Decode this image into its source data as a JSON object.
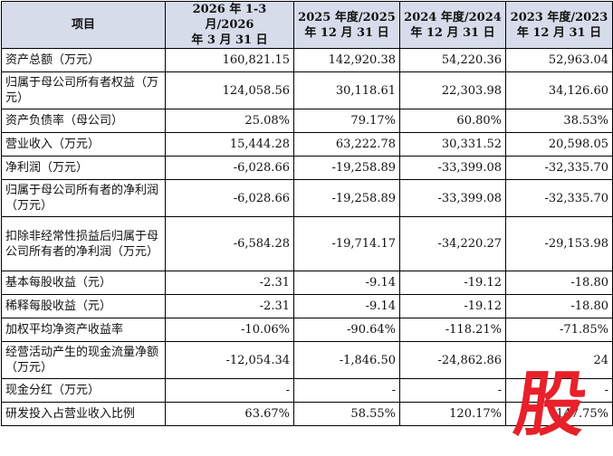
{
  "table": {
    "headers": [
      [
        "项目"
      ],
      [
        "2026 年 1-3 月/2026",
        "年 3 月 31 日"
      ],
      [
        "2025 年度/2025",
        "年 12 月 31 日"
      ],
      [
        "2024 年度/2024",
        "年 12 月 31 日"
      ],
      [
        "2023 年度/2023",
        "年 12 月 31 日"
      ]
    ],
    "rows": [
      {
        "label": "资产总额（万元）",
        "values": [
          "160,821.15",
          "142,920.38",
          "54,220.36",
          "52,963.04"
        ]
      },
      {
        "label": "归属于母公司所有者权益（万元）",
        "values": [
          "124,058.56",
          "30,118.61",
          "22,303.98",
          "34,126.60"
        ]
      },
      {
        "label": "资产负债率（母公司）",
        "values": [
          "25.08%",
          "79.17%",
          "60.80%",
          "38.53%"
        ]
      },
      {
        "label": "营业收入（万元）",
        "values": [
          "15,444.28",
          "63,222.78",
          "30,331.52",
          "20,598.05"
        ]
      },
      {
        "label": "净利润（万元）",
        "values": [
          "-6,028.66",
          "-19,258.89",
          "-33,399.08",
          "-32,335.70"
        ]
      },
      {
        "label": "归属于母公司所有者的净利润（万元）",
        "values": [
          "-6,028.66",
          "-19,258.89",
          "-33,399.08",
          "-32,335.70"
        ]
      },
      {
        "label": "扣除非经常性损益后归属于母公司所有者的净利润（万元）",
        "values": [
          "-6,584.28",
          "-19,714.17",
          "-34,220.27",
          "-29,153.98"
        ]
      },
      {
        "label": "基本每股收益（元）",
        "values": [
          "-2.31",
          "-9.14",
          "-19.12",
          "-18.80"
        ]
      },
      {
        "label": "稀释每股收益（元）",
        "values": [
          "-2.31",
          "-9.14",
          "-19.12",
          "-18.80"
        ]
      },
      {
        "label": "加权平均净资产收益率",
        "values": [
          "-10.06%",
          "-90.64%",
          "-118.21%",
          "-71.85%"
        ]
      },
      {
        "label": "经营活动产生的现金流量净额（万元）",
        "values": [
          "-12,054.34",
          "-1,846.50",
          "-24,862.86",
          "24"
        ]
      },
      {
        "label": "现金分红（万元）",
        "values": [
          "-",
          "-",
          "-",
          "-"
        ]
      },
      {
        "label": "研发投入占营业收入比例",
        "values": [
          "63.67%",
          "58.55%",
          "120.17%",
          "147.75%"
        ]
      }
    ]
  },
  "watermark": {
    "text": "股",
    "color": "#e8202a"
  }
}
